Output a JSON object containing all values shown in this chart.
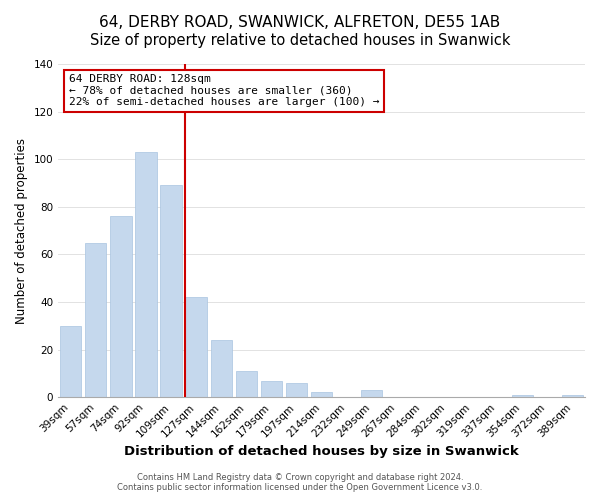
{
  "title": "64, DERBY ROAD, SWANWICK, ALFRETON, DE55 1AB",
  "subtitle": "Size of property relative to detached houses in Swanwick",
  "xlabel": "Distribution of detached houses by size in Swanwick",
  "ylabel": "Number of detached properties",
  "bar_labels": [
    "39sqm",
    "57sqm",
    "74sqm",
    "92sqm",
    "109sqm",
    "127sqm",
    "144sqm",
    "162sqm",
    "179sqm",
    "197sqm",
    "214sqm",
    "232sqm",
    "249sqm",
    "267sqm",
    "284sqm",
    "302sqm",
    "319sqm",
    "337sqm",
    "354sqm",
    "372sqm",
    "389sqm"
  ],
  "bar_values": [
    30,
    65,
    76,
    103,
    89,
    42,
    24,
    11,
    7,
    6,
    2,
    0,
    3,
    0,
    0,
    0,
    0,
    0,
    1,
    0,
    1
  ],
  "bar_color": "#c5d8ed",
  "bar_edge_color": "#a8c4e0",
  "vline_index": 5,
  "vline_color": "#cc0000",
  "ylim": [
    0,
    140
  ],
  "yticks": [
    0,
    20,
    40,
    60,
    80,
    100,
    120,
    140
  ],
  "annotation_title": "64 DERBY ROAD: 128sqm",
  "annotation_line1": "← 78% of detached houses are smaller (360)",
  "annotation_line2": "22% of semi-detached houses are larger (100) →",
  "annotation_box_color": "#ffffff",
  "annotation_box_edge": "#cc0000",
  "footer_line1": "Contains HM Land Registry data © Crown copyright and database right 2024.",
  "footer_line2": "Contains public sector information licensed under the Open Government Licence v3.0.",
  "title_fontsize": 11,
  "xlabel_fontsize": 9.5,
  "ylabel_fontsize": 8.5,
  "tick_fontsize": 7.5,
  "annotation_fontsize": 8,
  "footer_fontsize": 6
}
